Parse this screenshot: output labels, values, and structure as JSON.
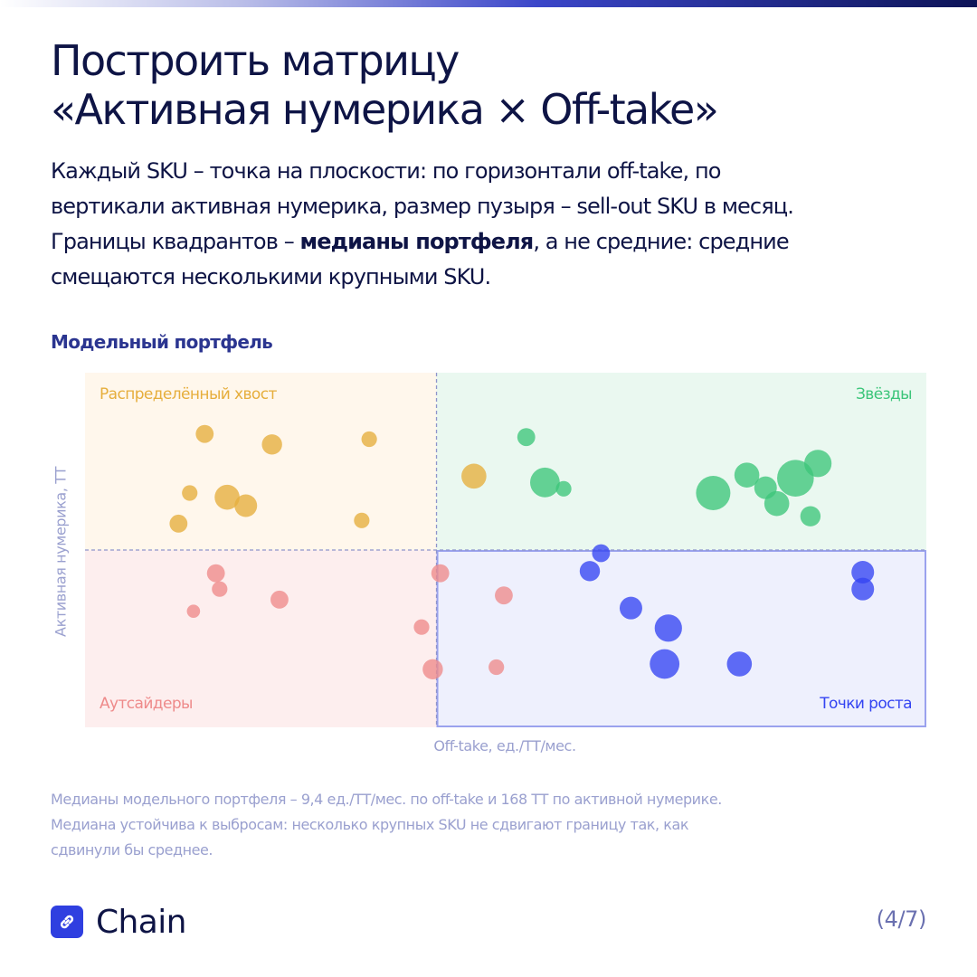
{
  "title": {
    "line1": "Построить матрицу",
    "line2": "«Активная нумерика × Off-take»"
  },
  "lead": {
    "line1": "Каждый SKU – точка на плоскости: по горизонтали off-take, по",
    "line2": "вертикали активная нумерика, размер пузыря – sell-out SKU в месяц.",
    "line3_before": "Границы квадрантов – ",
    "line3_bold": "медианы портфеля",
    "line3_after": ", а не средние: средние",
    "line4": "смещаются несколькими крупными SKU."
  },
  "subhead": "Модельный портфель",
  "colors": {
    "tail": "#e6ae3c",
    "stars": "#3cc57a",
    "outsiders": "#ee8a8a",
    "growth": "#3444f2"
  },
  "chart_data": {
    "type": "scatter",
    "xlabel": "Off-take, ед./ТТ/мес.",
    "ylabel": "Активная нумерика, ТТ",
    "medians": {
      "x": 9.4,
      "y": 168
    },
    "quadrants": [
      {
        "key": "tail",
        "label": "Распределённый хвост",
        "position": "top-left"
      },
      {
        "key": "stars",
        "label": "Звёзды",
        "position": "top-right"
      },
      {
        "key": "outsiders",
        "label": "Аутсайдеры",
        "position": "bottom-left"
      },
      {
        "key": "growth",
        "label": "Точки роста",
        "position": "bottom-right"
      }
    ],
    "series": [
      {
        "key": "tail",
        "points": [
          [
            3.2,
            278,
            3
          ],
          [
            5.0,
            268,
            4
          ],
          [
            7.6,
            273,
            2
          ],
          [
            10.4,
            238,
            6
          ],
          [
            3.8,
            218,
            6
          ],
          [
            2.8,
            222,
            2
          ],
          [
            2.5,
            193,
            3
          ],
          [
            4.3,
            210,
            5
          ],
          [
            7.4,
            196,
            2
          ]
        ]
      },
      {
        "key": "stars",
        "points": [
          [
            11.8,
            275,
            3
          ],
          [
            12.3,
            232,
            8
          ],
          [
            12.8,
            226,
            2
          ],
          [
            16.8,
            222,
            10
          ],
          [
            17.7,
            239,
            6
          ],
          [
            18.2,
            227,
            5
          ],
          [
            18.5,
            212,
            6
          ],
          [
            19.0,
            236,
            11
          ],
          [
            19.6,
            250,
            7
          ],
          [
            19.4,
            200,
            4
          ]
        ]
      },
      {
        "key": "outsiders",
        "points": [
          [
            3.5,
            146,
            3
          ],
          [
            3.6,
            131,
            2
          ],
          [
            5.2,
            121,
            3
          ],
          [
            2.9,
            110,
            1
          ],
          [
            9.5,
            146,
            3
          ],
          [
            9.0,
            95,
            2
          ],
          [
            11.2,
            125,
            3
          ],
          [
            9.3,
            55,
            4
          ],
          [
            11.0,
            57,
            2
          ]
        ]
      },
      {
        "key": "growth",
        "points": [
          [
            13.5,
            148,
            4
          ],
          [
            13.8,
            165,
            3
          ],
          [
            14.6,
            113,
            5
          ],
          [
            15.6,
            94,
            7
          ],
          [
            15.5,
            60,
            8
          ],
          [
            17.5,
            60,
            6
          ],
          [
            20.8,
            147,
            5
          ],
          [
            20.8,
            131,
            5
          ]
        ]
      }
    ]
  },
  "footnote": {
    "line1": "Медианы модельного портфеля – 9,4 ед./ТТ/мес. по off-take и 168 ТТ по активной нумерике.",
    "line2": "Медиана устойчива к выбросам: несколько крупных SKU не сдвигают границу так, как",
    "line3": "сдвинули бы среднее."
  },
  "brand": {
    "name": "Chain",
    "icon": "chain-link-icon"
  },
  "pager": "(4/7)"
}
